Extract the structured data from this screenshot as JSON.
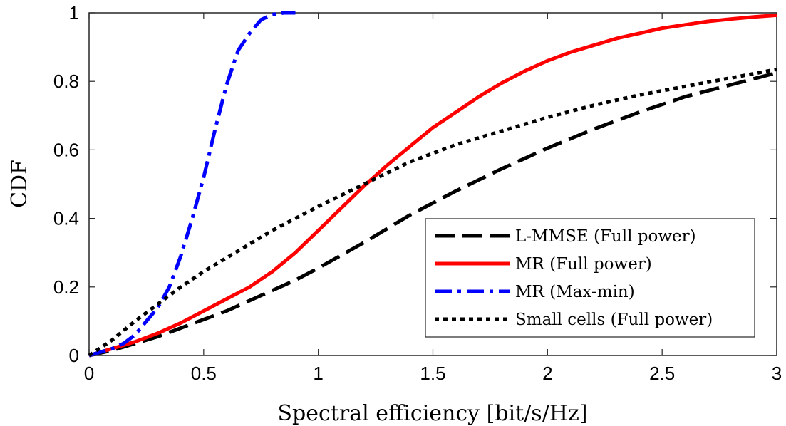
{
  "chart_data": {
    "type": "line",
    "title": "",
    "xlabel": "Spectral efficiency [bit/s/Hz]",
    "ylabel": "CDF",
    "xlim": [
      0,
      3
    ],
    "ylim": [
      0,
      1
    ],
    "xticks": [
      "0",
      "0.5",
      "1",
      "1.5",
      "2",
      "2.5",
      "3"
    ],
    "yticks": [
      "0",
      "0.2",
      "0.4",
      "0.6",
      "0.8",
      "1"
    ],
    "grid": false,
    "legend_position": "bottom-right",
    "series": [
      {
        "name": "L-MMSE (Full power)",
        "color": "#000000",
        "style": "dashed",
        "x": [
          0,
          0.1,
          0.2,
          0.3,
          0.4,
          0.5,
          0.6,
          0.7,
          0.8,
          0.9,
          1.0,
          1.2,
          1.4,
          1.6,
          1.8,
          2.0,
          2.2,
          2.4,
          2.6,
          2.8,
          3.0
        ],
        "y": [
          0,
          0.015,
          0.035,
          0.055,
          0.08,
          0.105,
          0.13,
          0.16,
          0.19,
          0.22,
          0.255,
          0.33,
          0.41,
          0.48,
          0.545,
          0.605,
          0.66,
          0.71,
          0.755,
          0.79,
          0.825
        ]
      },
      {
        "name": "MR (Full power)",
        "color": "#ff0000",
        "style": "solid",
        "x": [
          0,
          0.1,
          0.2,
          0.3,
          0.4,
          0.5,
          0.6,
          0.7,
          0.8,
          0.9,
          1.0,
          1.1,
          1.2,
          1.3,
          1.4,
          1.5,
          1.6,
          1.7,
          1.8,
          1.9,
          2.0,
          2.1,
          2.2,
          2.3,
          2.4,
          2.5,
          2.6,
          2.7,
          2.8,
          2.9,
          3.0
        ],
        "y": [
          0,
          0.02,
          0.04,
          0.065,
          0.095,
          0.13,
          0.165,
          0.2,
          0.245,
          0.3,
          0.365,
          0.43,
          0.495,
          0.555,
          0.61,
          0.665,
          0.71,
          0.755,
          0.795,
          0.83,
          0.86,
          0.885,
          0.905,
          0.925,
          0.94,
          0.955,
          0.965,
          0.975,
          0.982,
          0.988,
          0.993
        ]
      },
      {
        "name": "MR (Max-min)",
        "color": "#0000ff",
        "style": "dashdot",
        "x": [
          0,
          0.1,
          0.15,
          0.2,
          0.25,
          0.3,
          0.35,
          0.4,
          0.45,
          0.5,
          0.55,
          0.6,
          0.65,
          0.7,
          0.75,
          0.8,
          0.85,
          0.9
        ],
        "y": [
          0,
          0.02,
          0.035,
          0.06,
          0.1,
          0.14,
          0.2,
          0.29,
          0.4,
          0.52,
          0.66,
          0.79,
          0.89,
          0.94,
          0.98,
          0.995,
          1.0,
          1.0
        ]
      },
      {
        "name": "Small cells (Full power)",
        "color": "#000000",
        "style": "dotted",
        "x": [
          0,
          0.1,
          0.2,
          0.3,
          0.4,
          0.5,
          0.6,
          0.7,
          0.8,
          0.9,
          1.0,
          1.2,
          1.4,
          1.6,
          1.8,
          2.0,
          2.2,
          2.4,
          2.6,
          2.8,
          3.0
        ],
        "y": [
          0,
          0.045,
          0.1,
          0.15,
          0.2,
          0.245,
          0.285,
          0.325,
          0.365,
          0.4,
          0.435,
          0.5,
          0.565,
          0.615,
          0.655,
          0.695,
          0.73,
          0.76,
          0.785,
          0.81,
          0.835
        ]
      }
    ]
  }
}
